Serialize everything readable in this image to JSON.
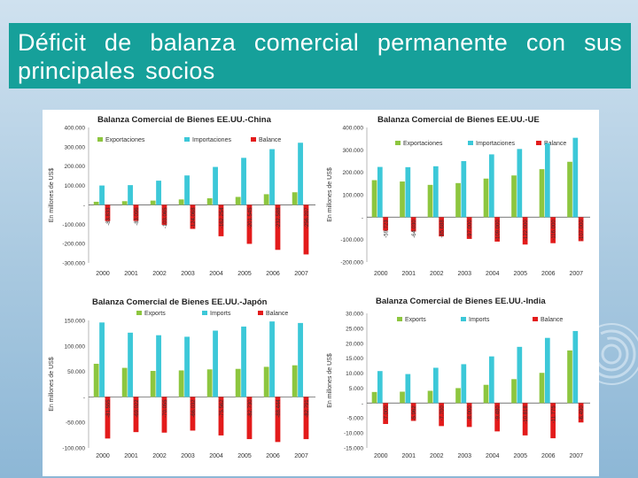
{
  "slide": {
    "title": "Déficit de balanza comercial permanente con sus principales socios"
  },
  "colors": {
    "title_bg": "#16a09a",
    "exports": "#8dc63f",
    "imports": "#3cc8d8",
    "balance": "#e31b1b"
  },
  "chart_data": [
    {
      "type": "bar",
      "title": "Balanza Comercial de Bienes EE.UU.-China",
      "ylabel": "En millones de US$",
      "ylim": [
        -300000,
        400000
      ],
      "yticks": [
        "400.000",
        "300.000",
        "200.000",
        "100.000",
        "-",
        "-100.000",
        "-200.000",
        "-300.000"
      ],
      "yticks_values": [
        400000,
        300000,
        200000,
        100000,
        0,
        -100000,
        -200000,
        -300000
      ],
      "categories": [
        "2000",
        "2001",
        "2002",
        "2003",
        "2004",
        "2005",
        "2006",
        "2007"
      ],
      "legend": [
        "Exportaciones",
        "Importaciones",
        "Balance"
      ],
      "series": [
        {
          "name": "Exportaciones",
          "values": [
            16000,
            19000,
            22000,
            28000,
            34000,
            41000,
            55000,
            65000
          ]
        },
        {
          "name": "Importaciones",
          "values": [
            100000,
            102000,
            125000,
            152000,
            196000,
            243000,
            288000,
            321000
          ]
        },
        {
          "name": "Balance",
          "values": [
            -83833,
            -83096,
            -103065,
            -124068,
            -162254,
            -201545,
            -232588,
            -256207
          ]
        }
      ],
      "balance_labels": [
        "-83.833",
        "-83.096",
        "-103.065",
        "-124.068",
        "-162.254",
        "-201.545",
        "-232.588",
        "-256.207"
      ],
      "legend_position": "top"
    },
    {
      "type": "bar",
      "title": "Balanza Comercial de Bienes EE.UU.-UE",
      "ylabel": "En millones de US$",
      "ylim": [
        -200000,
        400000
      ],
      "yticks": [
        "400.000",
        "300.000",
        "200.000",
        "100.000",
        "-",
        "-100.000",
        "-200.000"
      ],
      "yticks_values": [
        400000,
        300000,
        200000,
        100000,
        0,
        -100000,
        -200000
      ],
      "categories": [
        "2000",
        "2001",
        "2002",
        "2003",
        "2004",
        "2005",
        "2006",
        "2007"
      ],
      "legend": [
        "Exportaciones",
        "Importaciones",
        "Balance"
      ],
      "series": [
        {
          "name": "Exportaciones",
          "values": [
            165000,
            159000,
            144000,
            152000,
            172000,
            186000,
            214000,
            247000
          ]
        },
        {
          "name": "Importaciones",
          "values": [
            224000,
            223000,
            227000,
            250000,
            280000,
            304000,
            330000,
            354000
          ]
        },
        {
          "name": "Balance",
          "values": [
            -59723,
            -64030,
            -85688,
            -97000,
            -109000,
            -122000,
            -116000,
            -107000
          ]
        }
      ],
      "balance_labels": [
        "-59.723",
        "-64.030",
        "-85.688",
        "-97.000",
        "-109.000",
        "-122.000",
        "-116.000",
        "-107.000"
      ],
      "legend_position": "top"
    },
    {
      "type": "bar",
      "title": "Balanza Comercial de Bienes EE.UU.-Japón",
      "ylabel": "En millones de US$",
      "ylim": [
        -100000,
        150000
      ],
      "yticks": [
        "150.000",
        "100.000",
        "50.000",
        "-",
        "-50.000",
        "-100.000"
      ],
      "yticks_values": [
        150000,
        100000,
        50000,
        0,
        -50000,
        -100000
      ],
      "categories": [
        "2000",
        "2001",
        "2002",
        "2003",
        "2004",
        "2005",
        "2006",
        "2007"
      ],
      "legend": [
        "Exports",
        "Imports",
        "Balance"
      ],
      "series": [
        {
          "name": "Exports",
          "values": [
            65000,
            57000,
            51000,
            52000,
            54000,
            55000,
            59000,
            62000
          ]
        },
        {
          "name": "Imports",
          "values": [
            146000,
            126000,
            121000,
            118000,
            130000,
            138000,
            148000,
            145000
          ]
        },
        {
          "name": "Balance",
          "values": [
            -81555,
            -69022,
            -70055,
            -66032,
            -75562,
            -82730,
            -88444,
            -82791
          ]
        }
      ],
      "balance_labels": [
        "-81.555",
        "-69.022",
        "-70.055",
        "-66.032",
        "-75.562",
        "-82.730",
        "-88.444",
        "-82.791"
      ],
      "legend_position": "top"
    },
    {
      "type": "bar",
      "title": "Balanza Comercial de Bienes EE.UU.-India",
      "ylabel": "En millones de US$",
      "ylim": [
        -15000,
        30000
      ],
      "yticks": [
        "30.000",
        "25.000",
        "20.000",
        "15.000",
        "10.000",
        "5.000",
        "-",
        "-5.000",
        "-10.000",
        "-15.000"
      ],
      "yticks_values": [
        30000,
        25000,
        20000,
        15000,
        10000,
        5000,
        0,
        -5000,
        -10000,
        -15000
      ],
      "categories": [
        "2000",
        "2001",
        "2002",
        "2003",
        "2004",
        "2005",
        "2006",
        "2007"
      ],
      "legend": [
        "Exports",
        "Imports",
        "Balance"
      ],
      "series": [
        {
          "name": "Exports",
          "values": [
            3700,
            3800,
            4100,
            5000,
            6100,
            8000,
            10100,
            17600
          ]
        },
        {
          "name": "Imports",
          "values": [
            10700,
            9700,
            11800,
            13000,
            15600,
            18800,
            21800,
            24100
          ]
        },
        {
          "name": "Balance",
          "values": [
            -7000,
            -5962,
            -7700,
            -8000,
            -9480,
            -10818,
            -11775,
            -6490
          ]
        }
      ],
      "balance_labels": [
        "-7.000",
        "-5.962",
        "-7.700",
        "-8.000",
        "-9.480",
        "-10.818",
        "-11.775",
        "-6.490"
      ],
      "legend_position": "top"
    }
  ]
}
